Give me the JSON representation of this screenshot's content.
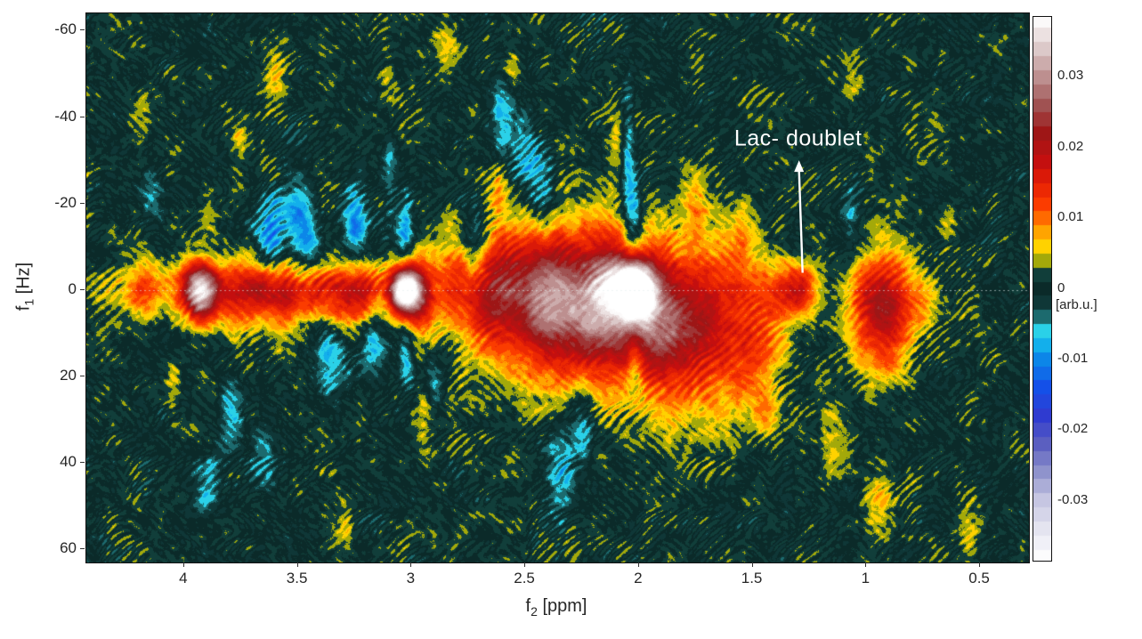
{
  "figure": {
    "background": "#ffffff",
    "text_color": "#262626"
  },
  "chart_data": {
    "type": "heatmap",
    "title": "",
    "xlabel": "f2 [ppm]",
    "ylabel": "f1 [Hz]",
    "x_axis": {
      "label": {
        "base": "f",
        "sub": "2",
        "unit": " [ppm]"
      },
      "ticks": [
        "4",
        "3.5",
        "3",
        "2.5",
        "2",
        "1.5",
        "1",
        "0.5"
      ],
      "range": [
        4.43,
        0.285
      ],
      "reversed": true
    },
    "y_axis": {
      "label": {
        "base": "f",
        "sub": "1",
        "unit": " [Hz]"
      },
      "ticks": [
        "-60",
        "-40",
        "-20",
        "0",
        "20",
        "40",
        "60"
      ],
      "range": [
        -64,
        63
      ]
    },
    "colorbar": {
      "ticks": [
        "0.03",
        "0.02",
        "0.01",
        "0",
        "-0.01",
        "-0.02",
        "-0.03"
      ],
      "unit_label": "[arb.u.]",
      "unit_value": -0.0025,
      "range": [
        -0.0385,
        0.0385
      ]
    },
    "zero_line_hz": 0,
    "quantize_step": 0.002,
    "colormap": [
      [
        -0.0385,
        "#ffffff"
      ],
      [
        -0.034,
        "#e4e4f0"
      ],
      [
        -0.03,
        "#c6c6e2"
      ],
      [
        -0.026,
        "#8f93cc"
      ],
      [
        -0.022,
        "#5b5fc0"
      ],
      [
        -0.018,
        "#2f3bd0"
      ],
      [
        -0.014,
        "#1450e8"
      ],
      [
        -0.01,
        "#0c86e8"
      ],
      [
        -0.007,
        "#17c3ec"
      ],
      [
        -0.0052,
        "#3adce4"
      ],
      [
        -0.004,
        "#1c6a6e"
      ],
      [
        -0.0028,
        "#103c3c"
      ],
      [
        0.0,
        "#0b2a29"
      ],
      [
        0.0028,
        "#134641"
      ],
      [
        0.0036,
        "#5c6c14"
      ],
      [
        0.0044,
        "#eae600"
      ],
      [
        0.006,
        "#ffd200"
      ],
      [
        0.008,
        "#ffa400"
      ],
      [
        0.01,
        "#ff6a00"
      ],
      [
        0.012,
        "#fb3c00"
      ],
      [
        0.015,
        "#e51e04"
      ],
      [
        0.018,
        "#c40f0f"
      ],
      [
        0.022,
        "#9e1616"
      ],
      [
        0.026,
        "#a05252"
      ],
      [
        0.03,
        "#bd8f8f"
      ],
      [
        0.034,
        "#dcc9c9"
      ],
      [
        0.0385,
        "#ffffff"
      ]
    ],
    "annotation": {
      "text": "Lac- doublet",
      "color": "#ffffff",
      "f2_ppm": 1.3,
      "text_center_hz": -35,
      "arrow_tail_hz": -30,
      "arrow_tip_hz": -4
    },
    "peaks_format": [
      "f2_ppm",
      "f1_hz",
      "amplitude",
      "sigma_f2_ppm",
      "sigma_f1_hz"
    ],
    "peaks": [
      [
        4.18,
        0,
        0.007,
        0.05,
        5
      ],
      [
        3.93,
        0,
        0.032,
        0.055,
        4.5
      ],
      [
        3.78,
        2,
        0.009,
        0.06,
        6
      ],
      [
        3.66,
        0,
        0.011,
        0.06,
        5
      ],
      [
        3.55,
        3,
        0.009,
        0.05,
        6
      ],
      [
        3.42,
        0,
        0.011,
        0.06,
        5
      ],
      [
        3.3,
        2,
        0.01,
        0.05,
        6
      ],
      [
        3.21,
        0,
        0.013,
        0.05,
        5
      ],
      [
        3.03,
        0,
        0.042,
        0.05,
        4
      ],
      [
        2.95,
        2,
        0.01,
        0.05,
        7
      ],
      [
        2.82,
        -2,
        0.008,
        0.05,
        6
      ],
      [
        2.7,
        4,
        0.009,
        0.06,
        8
      ],
      [
        2.6,
        0,
        0.012,
        0.07,
        8
      ],
      [
        2.45,
        3,
        0.013,
        0.09,
        10
      ],
      [
        2.33,
        2,
        0.015,
        0.09,
        10
      ],
      [
        2.2,
        4,
        0.014,
        0.08,
        10
      ],
      [
        2.13,
        -2,
        0.013,
        0.06,
        8
      ],
      [
        2.02,
        0,
        0.047,
        0.055,
        4.5
      ],
      [
        2.02,
        9,
        0.012,
        0.1,
        10
      ],
      [
        1.9,
        5,
        0.011,
        0.08,
        10
      ],
      [
        1.78,
        10,
        0.009,
        0.09,
        12
      ],
      [
        1.65,
        5,
        0.008,
        0.09,
        12
      ],
      [
        1.52,
        12,
        0.007,
        0.08,
        12
      ],
      [
        1.42,
        3,
        0.007,
        0.06,
        8
      ],
      [
        1.33,
        0,
        0.011,
        0.05,
        4
      ],
      [
        1.27,
        0,
        0.009,
        0.04,
        4
      ],
      [
        1.0,
        3,
        0.009,
        0.07,
        8
      ],
      [
        0.92,
        8,
        0.008,
        0.07,
        9
      ],
      [
        0.88,
        0,
        0.008,
        0.06,
        7
      ],
      [
        0.75,
        3,
        0.006,
        0.05,
        6
      ],
      [
        2.3,
        5,
        0.006,
        0.3,
        16
      ],
      [
        1.8,
        8,
        0.005,
        0.25,
        16
      ],
      [
        2.6,
        -5,
        0.004,
        0.2,
        12
      ],
      [
        0.95,
        5,
        0.004,
        0.12,
        10
      ],
      [
        3.5,
        0,
        0.004,
        0.5,
        4
      ],
      [
        4.0,
        0,
        0.004,
        0.3,
        4
      ],
      [
        3.9,
        -18,
        0.005,
        0.03,
        4
      ],
      [
        3.75,
        -35,
        0.005,
        0.03,
        4
      ],
      [
        4.05,
        20,
        0.005,
        0.03,
        4
      ],
      [
        3.6,
        -50,
        0.005,
        0.04,
        5
      ],
      [
        3.1,
        -45,
        0.005,
        0.03,
        5
      ],
      [
        2.85,
        -55,
        0.005,
        0.04,
        4
      ],
      [
        2.62,
        -25,
        0.006,
        0.03,
        5
      ],
      [
        2.55,
        -52,
        0.005,
        0.03,
        4
      ],
      [
        2.1,
        -35,
        0.005,
        0.03,
        5
      ],
      [
        1.75,
        -20,
        0.006,
        0.04,
        5
      ],
      [
        1.55,
        -12,
        0.006,
        0.04,
        5
      ],
      [
        1.45,
        28,
        0.005,
        0.04,
        6
      ],
      [
        1.15,
        35,
        0.005,
        0.04,
        5
      ],
      [
        0.95,
        48,
        0.005,
        0.04,
        5
      ],
      [
        0.55,
        55,
        0.005,
        0.04,
        4
      ],
      [
        3.3,
        55,
        0.005,
        0.04,
        4
      ],
      [
        2.95,
        30,
        0.005,
        0.03,
        5
      ],
      [
        4.2,
        -40,
        0.004,
        0.03,
        4
      ],
      [
        0.65,
        -15,
        0.004,
        0.03,
        4
      ],
      [
        1.05,
        -48,
        0.004,
        0.03,
        4
      ],
      [
        3.62,
        -13,
        -0.011,
        0.05,
        6
      ],
      [
        3.5,
        -18,
        -0.009,
        0.04,
        5
      ],
      [
        3.45,
        -10,
        -0.008,
        0.04,
        5
      ],
      [
        3.25,
        -15,
        -0.012,
        0.04,
        6
      ],
      [
        3.35,
        14,
        -0.009,
        0.05,
        6
      ],
      [
        3.18,
        12,
        -0.008,
        0.04,
        5
      ],
      [
        2.72,
        -12,
        -0.01,
        0.04,
        6
      ],
      [
        2.6,
        -38,
        -0.008,
        0.04,
        7
      ],
      [
        2.5,
        -30,
        -0.008,
        0.04,
        7
      ],
      [
        2.42,
        -22,
        -0.008,
        0.04,
        6
      ],
      [
        2.35,
        42,
        -0.008,
        0.05,
        8
      ],
      [
        2.25,
        30,
        -0.007,
        0.04,
        7
      ],
      [
        3.8,
        28,
        -0.007,
        0.04,
        6
      ],
      [
        3.65,
        38,
        -0.006,
        0.04,
        6
      ],
      [
        3.9,
        45,
        -0.006,
        0.04,
        5
      ],
      [
        4.15,
        -22,
        -0.006,
        0.035,
        5
      ],
      [
        1.07,
        -18,
        -0.006,
        0.035,
        5
      ],
      [
        2.9,
        20,
        -0.006,
        0.03,
        5
      ],
      [
        2.05,
        -30,
        -0.008,
        0.02,
        12
      ],
      [
        2.02,
        -17,
        -0.009,
        0.025,
        7
      ],
      [
        2.02,
        16,
        -0.008,
        0.025,
        7
      ],
      [
        3.03,
        -14,
        -0.009,
        0.025,
        6
      ],
      [
        3.03,
        14,
        -0.008,
        0.025,
        6
      ],
      [
        3.1,
        -30,
        -0.006,
        0.02,
        8
      ]
    ],
    "noise": {
      "base": 0.0006,
      "seed": 7
    }
  }
}
